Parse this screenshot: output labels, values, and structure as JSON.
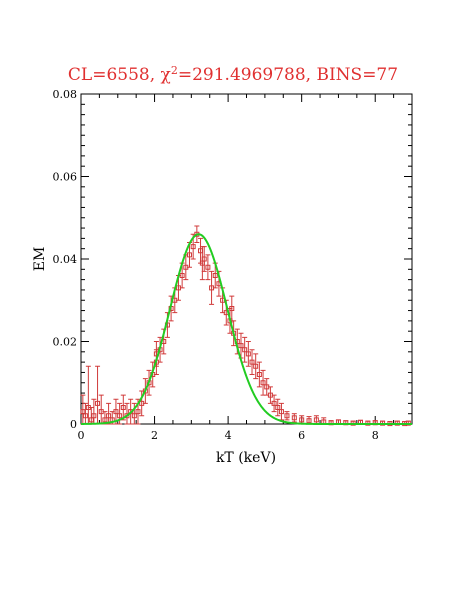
{
  "chart_data": {
    "type": "scatter",
    "title_prefix": "CL=6558, ",
    "title_chi": "χ",
    "title_sup": "2",
    "title_suffix": "=291.4969788, BINS=77",
    "xlabel": "kT (keV)",
    "ylabel": "EM",
    "xlim": [
      0,
      9
    ],
    "ylim": [
      0,
      0.08
    ],
    "xticks": [
      "0",
      "2",
      "4",
      "6",
      "8"
    ],
    "yticks": [
      "0",
      "0.02",
      "0.04",
      "0.06",
      "0.08"
    ],
    "grid": false,
    "colors": {
      "data": "#d03a3a",
      "model": "#22cc22",
      "title": "#e03030"
    },
    "series": [
      {
        "kind": "points-with-errorbars",
        "x": [
          0.05,
          0.12,
          0.2,
          0.28,
          0.35,
          0.45,
          0.55,
          0.65,
          0.75,
          0.85,
          0.95,
          1.05,
          1.15,
          1.25,
          1.35,
          1.45,
          1.55,
          1.65,
          1.75,
          1.85,
          1.95,
          2.05,
          2.15,
          2.25,
          2.35,
          2.45,
          2.55,
          2.65,
          2.75,
          2.85,
          2.95,
          3.05,
          3.15,
          3.25,
          3.35,
          3.45,
          3.55,
          3.65,
          3.75,
          3.85,
          3.95,
          4.05,
          4.15,
          4.25,
          4.35,
          4.45,
          4.55,
          4.65,
          4.75,
          4.85,
          4.95,
          5.05,
          5.15,
          5.25,
          5.35,
          5.45,
          5.6,
          5.8,
          6.0,
          6.2,
          6.4,
          6.6,
          6.8,
          7.0,
          7.2,
          7.4,
          7.6,
          7.8,
          8.0,
          8.2,
          8.4,
          8.6,
          8.8,
          8.9,
          2.05,
          3.3,
          4.1
        ],
        "y": [
          0.003,
          0.002,
          0.004,
          0.001,
          0.002,
          0.005,
          0.003,
          0.001,
          0.002,
          0.001,
          0.003,
          0.002,
          0.004,
          0.002,
          0.003,
          0.002,
          0.003,
          0.005,
          0.008,
          0.01,
          0.012,
          0.015,
          0.018,
          0.02,
          0.024,
          0.028,
          0.03,
          0.033,
          0.036,
          0.038,
          0.041,
          0.043,
          0.046,
          0.042,
          0.04,
          0.038,
          0.033,
          0.036,
          0.034,
          0.03,
          0.027,
          0.025,
          0.022,
          0.02,
          0.019,
          0.018,
          0.017,
          0.015,
          0.014,
          0.012,
          0.01,
          0.009,
          0.007,
          0.005,
          0.004,
          0.003,
          0.002,
          0.0015,
          0.001,
          0.0008,
          0.001,
          0.0005,
          0.0003,
          0.0005,
          0.0003,
          0.0002,
          0.0004,
          0.0002,
          0.0003,
          0.0002,
          0.0001,
          0.0002,
          0.0001,
          0.0002,
          0.017,
          0.039,
          0.028
        ],
        "err": [
          0.004,
          0.003,
          0.01,
          0.003,
          0.004,
          0.009,
          0.004,
          0.002,
          0.003,
          0.002,
          0.003,
          0.003,
          0.003,
          0.003,
          0.003,
          0.003,
          0.003,
          0.003,
          0.003,
          0.003,
          0.003,
          0.003,
          0.003,
          0.003,
          0.003,
          0.003,
          0.003,
          0.003,
          0.003,
          0.003,
          0.003,
          0.003,
          0.002,
          0.003,
          0.003,
          0.003,
          0.004,
          0.003,
          0.003,
          0.003,
          0.003,
          0.003,
          0.003,
          0.003,
          0.003,
          0.003,
          0.003,
          0.003,
          0.003,
          0.003,
          0.003,
          0.002,
          0.002,
          0.002,
          0.002,
          0.002,
          0.001,
          0.001,
          0.001,
          0.001,
          0.001,
          0.001,
          0.0005,
          0.0005,
          0.0005,
          0.0005,
          0.0005,
          0.0005,
          0.0005,
          0.0005,
          0.0005,
          0.0005,
          0.0005,
          0.0005,
          0.003,
          0.004,
          0.003
        ]
      },
      {
        "kind": "model-curve",
        "gaussian_amplitude": 0.046,
        "gaussian_center": 3.2,
        "gaussian_sigma": 0.78
      }
    ]
  }
}
